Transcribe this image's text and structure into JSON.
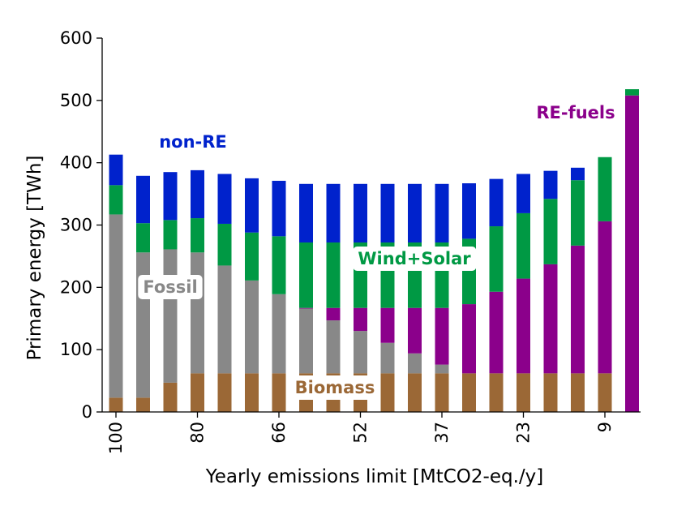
{
  "chart_data": {
    "type": "bar",
    "stacked": true,
    "xlabel": "Yearly emissions limit [MtCO2-eq./y]",
    "ylabel": "Primary energy [TWh]",
    "ylim": [
      0,
      600
    ],
    "yticks": [
      0,
      100,
      200,
      300,
      400,
      500,
      600
    ],
    "categories": [
      "100",
      "",
      "",
      "80",
      "",
      "",
      "66",
      "",
      "",
      "52",
      "",
      "",
      "37",
      "",
      "",
      "23",
      "",
      "",
      "9",
      ""
    ],
    "xtick_labels": [
      {
        "index": 0,
        "label": "100"
      },
      {
        "index": 3,
        "label": "80"
      },
      {
        "index": 6,
        "label": "66"
      },
      {
        "index": 9,
        "label": "52"
      },
      {
        "index": 12,
        "label": "37"
      },
      {
        "index": 15,
        "label": "23"
      },
      {
        "index": 18,
        "label": "9"
      }
    ],
    "series": [
      {
        "name": "Biomass",
        "color": "#9b6836",
        "values": [
          23,
          23,
          47,
          62,
          62,
          62,
          62,
          62,
          62,
          62,
          62,
          62,
          62,
          62,
          62,
          62,
          62,
          62,
          62,
          0
        ]
      },
      {
        "name": "Fossil",
        "color": "#888888",
        "values": [
          294,
          233,
          214,
          194,
          173,
          149,
          127,
          104,
          85,
          68,
          49,
          32,
          14,
          0,
          0,
          0,
          0,
          0,
          0,
          0
        ]
      },
      {
        "name": "RE-fuels",
        "color": "#8b008b",
        "values": [
          0,
          0,
          0,
          0,
          0,
          0,
          0,
          1,
          20,
          37,
          56,
          73,
          91,
          111,
          131,
          152,
          175,
          205,
          244,
          508
        ]
      },
      {
        "name": "Wind+Solar",
        "color": "#009944",
        "values": [
          47,
          47,
          47,
          55,
          67,
          77,
          93,
          105,
          105,
          105,
          105,
          105,
          105,
          105,
          105,
          105,
          105,
          105,
          103,
          10
        ]
      },
      {
        "name": "non-RE",
        "color": "#0022cc",
        "values": [
          49,
          76,
          77,
          77,
          80,
          87,
          89,
          94,
          94,
          94,
          94,
          94,
          94,
          89,
          76,
          63,
          45,
          20,
          0,
          0
        ]
      }
    ],
    "annotations": [
      {
        "text": "non-RE",
        "color": "#0022cc"
      },
      {
        "text": "Fossil",
        "color": "#888888"
      },
      {
        "text": "Wind+Solar",
        "color": "#009944"
      },
      {
        "text": "Biomass",
        "color": "#9b6836"
      },
      {
        "text": "RE-fuels",
        "color": "#8b008b"
      }
    ]
  }
}
